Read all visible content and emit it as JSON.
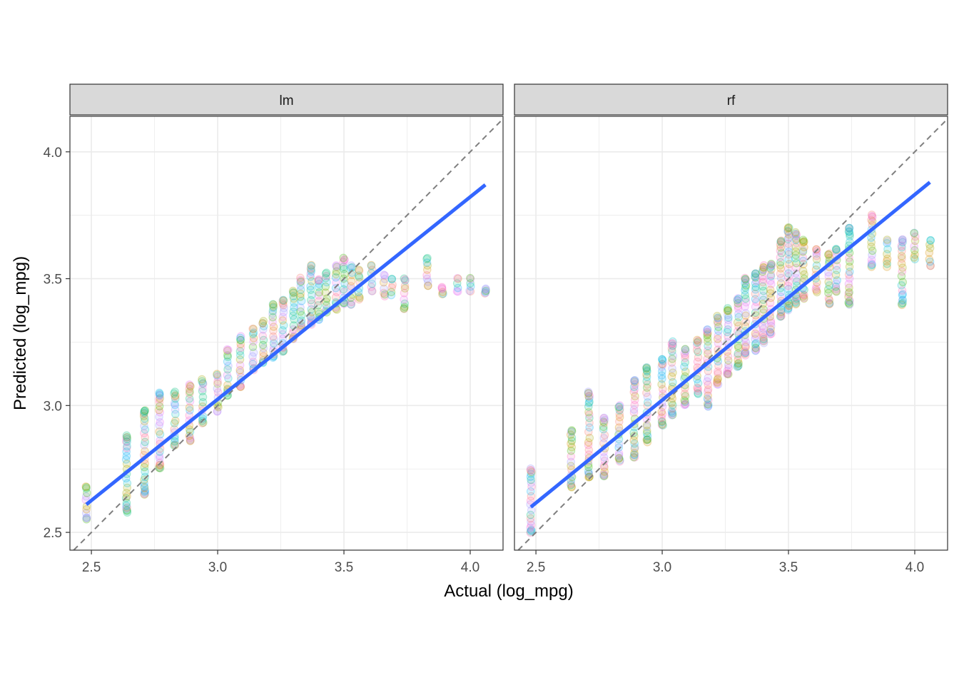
{
  "chart_data": {
    "type": "scatter",
    "xlabel": "Actual (log_mpg)",
    "ylabel": "Predicted (log_mpg)",
    "xlim": [
      2.415,
      4.13
    ],
    "ylim": [
      2.43,
      4.14
    ],
    "x_ticks": [
      "2.5",
      "3.0",
      "3.5",
      "4.0"
    ],
    "y_ticks": [
      "2.5",
      "3.0",
      "3.5",
      "4.0"
    ],
    "grid": true,
    "reference_line": {
      "style": "dashed",
      "slope": 1,
      "intercept": 0,
      "color": "#7f7f7f"
    },
    "point_colors": [
      "#F8766D",
      "#D89000",
      "#A3A500",
      "#39B600",
      "#00BF7D",
      "#00BFC4",
      "#00B0F6",
      "#9590FF",
      "#E76BF3",
      "#FF62BC"
    ],
    "fit_color": "#3366FF",
    "x_levels": [
      2.48,
      2.64,
      2.71,
      2.77,
      2.83,
      2.89,
      2.94,
      3.0,
      3.04,
      3.09,
      3.14,
      3.18,
      3.22,
      3.26,
      3.3,
      3.33,
      3.37,
      3.4,
      3.43,
      3.47,
      3.5,
      3.53,
      3.56,
      3.61,
      3.66,
      3.69,
      3.74,
      3.83,
      3.89,
      3.95,
      4.0,
      4.06
    ],
    "panels": [
      {
        "name": "lm",
        "fit": {
          "x": [
            2.48,
            4.06
          ],
          "y": [
            2.61,
            3.87
          ]
        },
        "columns": [
          [
            2.48,
            2.55,
            2.68
          ],
          [
            2.64,
            2.58,
            2.88
          ],
          [
            2.71,
            2.65,
            2.98
          ],
          [
            2.77,
            2.75,
            3.05
          ],
          [
            2.83,
            2.84,
            3.05
          ],
          [
            2.89,
            2.86,
            3.08
          ],
          [
            2.94,
            2.93,
            3.1
          ],
          [
            3.0,
            2.98,
            3.12
          ],
          [
            3.04,
            3.04,
            3.22
          ],
          [
            3.09,
            3.07,
            3.27
          ],
          [
            3.14,
            3.14,
            3.3
          ],
          [
            3.18,
            3.17,
            3.33
          ],
          [
            3.22,
            3.19,
            3.4
          ],
          [
            3.26,
            3.21,
            3.42
          ],
          [
            3.3,
            3.26,
            3.45
          ],
          [
            3.33,
            3.3,
            3.5
          ],
          [
            3.37,
            3.32,
            3.55
          ],
          [
            3.4,
            3.34,
            3.5
          ],
          [
            3.43,
            3.37,
            3.52
          ],
          [
            3.47,
            3.38,
            3.55
          ],
          [
            3.5,
            3.4,
            3.58
          ],
          [
            3.53,
            3.4,
            3.55
          ],
          [
            3.56,
            3.42,
            3.53
          ],
          [
            3.61,
            3.45,
            3.55
          ],
          [
            3.66,
            3.43,
            3.52
          ],
          [
            3.69,
            3.44,
            3.5
          ],
          [
            3.74,
            3.38,
            3.5
          ],
          [
            3.83,
            3.47,
            3.58
          ],
          [
            3.89,
            3.44,
            3.47
          ],
          [
            3.95,
            3.45,
            3.5
          ],
          [
            4.0,
            3.45,
            3.5
          ],
          [
            4.06,
            3.44,
            3.46
          ]
        ]
      },
      {
        "name": "rf",
        "fit": {
          "x": [
            2.48,
            4.06
          ],
          "y": [
            2.6,
            3.88
          ]
        },
        "columns": [
          [
            2.48,
            2.5,
            2.75
          ],
          [
            2.64,
            2.68,
            2.9
          ],
          [
            2.71,
            2.72,
            3.05
          ],
          [
            2.77,
            2.72,
            2.95
          ],
          [
            2.83,
            2.78,
            3.0
          ],
          [
            2.89,
            2.8,
            3.1
          ],
          [
            2.94,
            2.86,
            3.15
          ],
          [
            3.0,
            2.92,
            3.18
          ],
          [
            3.04,
            2.96,
            3.25
          ],
          [
            3.09,
            3.0,
            3.22
          ],
          [
            3.14,
            3.05,
            3.26
          ],
          [
            3.18,
            3.0,
            3.3
          ],
          [
            3.22,
            3.08,
            3.35
          ],
          [
            3.26,
            3.12,
            3.38
          ],
          [
            3.3,
            3.15,
            3.42
          ],
          [
            3.33,
            3.2,
            3.5
          ],
          [
            3.37,
            3.22,
            3.52
          ],
          [
            3.4,
            3.25,
            3.55
          ],
          [
            3.43,
            3.28,
            3.56
          ],
          [
            3.47,
            3.35,
            3.65
          ],
          [
            3.5,
            3.38,
            3.7
          ],
          [
            3.53,
            3.4,
            3.68
          ],
          [
            3.56,
            3.42,
            3.65
          ],
          [
            3.61,
            3.45,
            3.62
          ],
          [
            3.66,
            3.4,
            3.6
          ],
          [
            3.69,
            3.45,
            3.62
          ],
          [
            3.74,
            3.4,
            3.7
          ],
          [
            3.83,
            3.55,
            3.75
          ],
          [
            3.89,
            3.55,
            3.65
          ],
          [
            3.95,
            3.4,
            3.65
          ],
          [
            4.0,
            3.58,
            3.68
          ],
          [
            4.06,
            3.55,
            3.65
          ]
        ]
      }
    ]
  }
}
